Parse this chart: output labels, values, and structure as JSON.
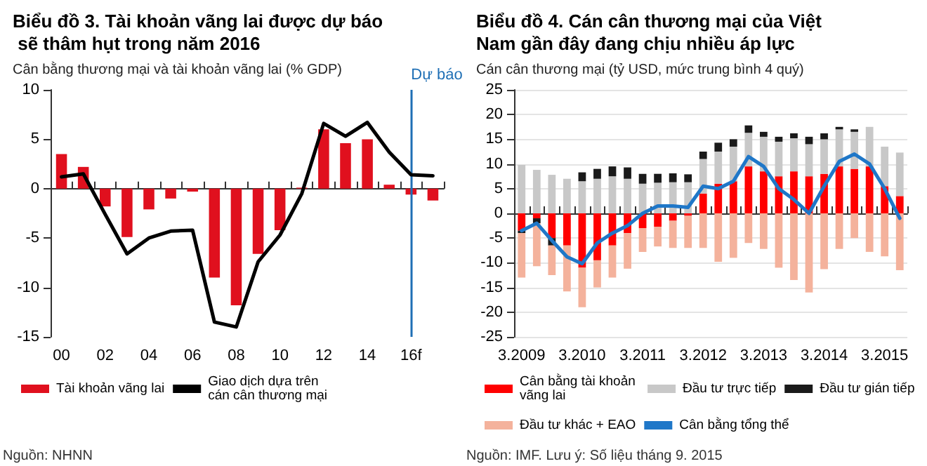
{
  "chart_data": [
    {
      "type": "bar",
      "title": "Biểu đồ 3. Tài khoản vãng lai được dự báo sẽ thâm hụt trong năm 2016",
      "subtitle": "Cân bằng thương mại và tài khoản vãng lai (% GDP)",
      "categories": [
        "00",
        null,
        "02",
        null,
        "04",
        null,
        "06",
        null,
        "08",
        null,
        "10",
        null,
        "12",
        null,
        "14",
        null,
        "16f",
        null
      ],
      "series": [
        {
          "name": "Tài khoản vãng lai",
          "color": "#e0101e",
          "values": [
            3.5,
            2.2,
            -1.8,
            -4.9,
            -2.1,
            -1.0,
            -0.3,
            -9.0,
            -11.8,
            -6.6,
            -4.2,
            0.1,
            6.0,
            4.6,
            5.0,
            0.4,
            -0.6,
            -1.2
          ]
        },
        {
          "type": "line",
          "name": "Giao dịch dựa trên cán cân thương mại",
          "color": "#000000",
          "values": [
            1.2,
            1.5,
            -2.6,
            -6.6,
            -5.0,
            -4.3,
            -4.2,
            -13.5,
            -14.0,
            -7.4,
            -4.7,
            -0.5,
            6.6,
            5.3,
            6.7,
            3.7,
            1.4,
            1.3
          ]
        }
      ],
      "ylim": [
        -15,
        10
      ],
      "yticks": [
        -15,
        -10,
        -5,
        0,
        5,
        10
      ],
      "grid": false,
      "legend": "bottom",
      "ref_lines": [
        {
          "axis": "x",
          "value": "16f",
          "label": "Dự báo",
          "color": "#1f6fb5"
        }
      ],
      "annotations": [
        "Nguồn: NHNN"
      ]
    },
    {
      "type": "bar",
      "stacked": true,
      "title": "Biểu đồ 4. Cán cân thương mại của Việt Nam gần đây đang chịu nhiều áp lực",
      "subtitle": "Cán cân thương mại (tỷ USD, mức trung bình 4 quý)",
      "categories": [
        "3.2009",
        null,
        null,
        null,
        "3.2010",
        null,
        null,
        null,
        "3.2011",
        null,
        null,
        null,
        "3.2012",
        null,
        null,
        null,
        "3.2013",
        null,
        null,
        null,
        "3.2014",
        null,
        null,
        null,
        "3.2015",
        null
      ],
      "series": [
        {
          "name": "Cân bằng tài khoản vãng lai",
          "color": "#ff0000",
          "values": [
            -3.5,
            -1.0,
            -5,
            -6.5,
            -11,
            -9.5,
            -6.5,
            -4,
            -3,
            -2.7,
            -1.5,
            -0.5,
            4,
            6,
            6.5,
            9.5,
            8.5,
            7.5,
            8.5,
            7.5,
            8,
            9.5,
            9,
            9.5,
            5.5,
            3.5
          ]
        },
        {
          "name": "Đầu tư trực tiếp",
          "color": "#c8c8c8",
          "values": [
            9.8,
            8.8,
            7.8,
            7.0,
            6.5,
            7,
            7.5,
            7,
            6,
            6.2,
            6.3,
            6.3,
            7,
            6.5,
            7,
            6.8,
            7,
            7,
            6.7,
            6.5,
            7,
            7.5,
            7.5,
            8,
            8,
            8.8
          ]
        },
        {
          "name": "Đầu tư gián tiếp",
          "color": "#1a1a1a",
          "values": [
            -0.5,
            -1.0,
            -1.5,
            null,
            1.8,
            2,
            2,
            2.3,
            2,
            1.8,
            1.8,
            1.6,
            1.5,
            1.8,
            1.5,
            1.5,
            1,
            1,
            1,
            1.5,
            1.2,
            0.5,
            0.5,
            null,
            null,
            null
          ]
        },
        {
          "name": "Đầu tư khác + EAO",
          "color": "#f4b29c",
          "values": [
            -9,
            -8.7,
            -6,
            -9.3,
            -8,
            -5.5,
            -6.5,
            -7.2,
            -4.8,
            -4,
            -5.5,
            -6.5,
            -7,
            -9.8,
            -9,
            -6,
            -7.2,
            -11,
            -13.5,
            -16,
            -11.3,
            -7.2,
            -5,
            -7.8,
            -8.7,
            -11.5
          ]
        },
        {
          "type": "line",
          "name": "Cân bằng tổng thể",
          "color": "#1f77c8",
          "values": [
            -3.5,
            -2,
            -5.5,
            -8.8,
            -10.2,
            -6,
            -4,
            -2.5,
            0,
            1.5,
            1.5,
            1.2,
            5.5,
            5,
            6.5,
            11.5,
            9.5,
            5,
            2.8,
            0,
            5.5,
            10.5,
            12,
            10,
            5,
            -1
          ]
        }
      ],
      "ylim": [
        -25,
        25
      ],
      "yticks": [
        -25,
        -20,
        -15,
        -10,
        -5,
        0,
        5,
        10,
        15,
        20,
        25
      ],
      "grid": "y",
      "legend": "bottom",
      "annotations": [
        "Nguồn: IMF. Lưu ý: Số liệu tháng 9. 2015"
      ]
    }
  ]
}
